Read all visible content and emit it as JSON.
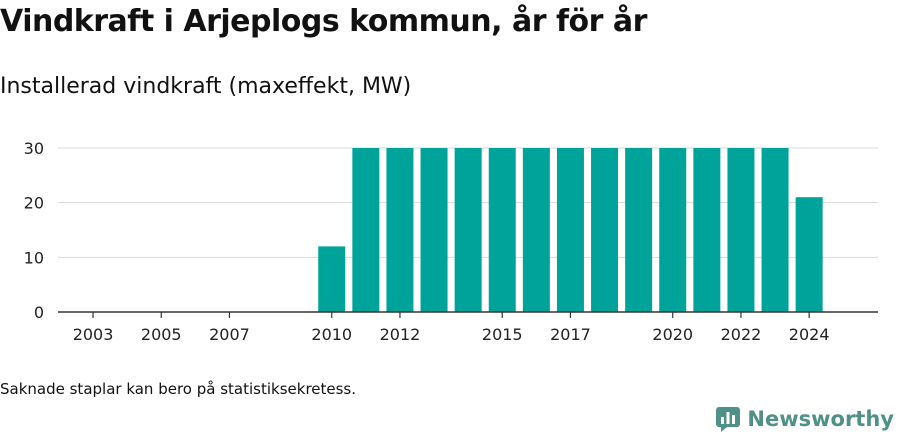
{
  "title": "Vindkraft i Arjeplogs kommun, år för år",
  "subtitle": "Installerad vindkraft (maxeffekt, MW)",
  "footnote": "Saknade staplar kan bero på statistiksekretess.",
  "brand": {
    "name": "Newsworthy",
    "color": "#4f9189"
  },
  "chart_data": {
    "type": "bar",
    "title": "Installerad vindkraft (maxeffekt, MW)",
    "xlabel": "",
    "ylabel": "",
    "categories": [
      "2003",
      "2004",
      "2005",
      "2006",
      "2007",
      "2008",
      "2009",
      "2010",
      "2011",
      "2012",
      "2013",
      "2014",
      "2015",
      "2016",
      "2017",
      "2018",
      "2019",
      "2020",
      "2021",
      "2022",
      "2023",
      "2024"
    ],
    "values": [
      0,
      0,
      0,
      0,
      0,
      0,
      0,
      12,
      30,
      30,
      30,
      30,
      30,
      30,
      30,
      30,
      30,
      30,
      30,
      30,
      30,
      21
    ],
    "x_tick_labels": [
      "2003",
      "2005",
      "2007",
      "2010",
      "2012",
      "2015",
      "2017",
      "2020",
      "2022",
      "2024"
    ],
    "y_ticks": [
      0,
      10,
      20,
      30
    ],
    "ylim": [
      0,
      30
    ],
    "grid": true,
    "bar_color": "#00a39a"
  }
}
